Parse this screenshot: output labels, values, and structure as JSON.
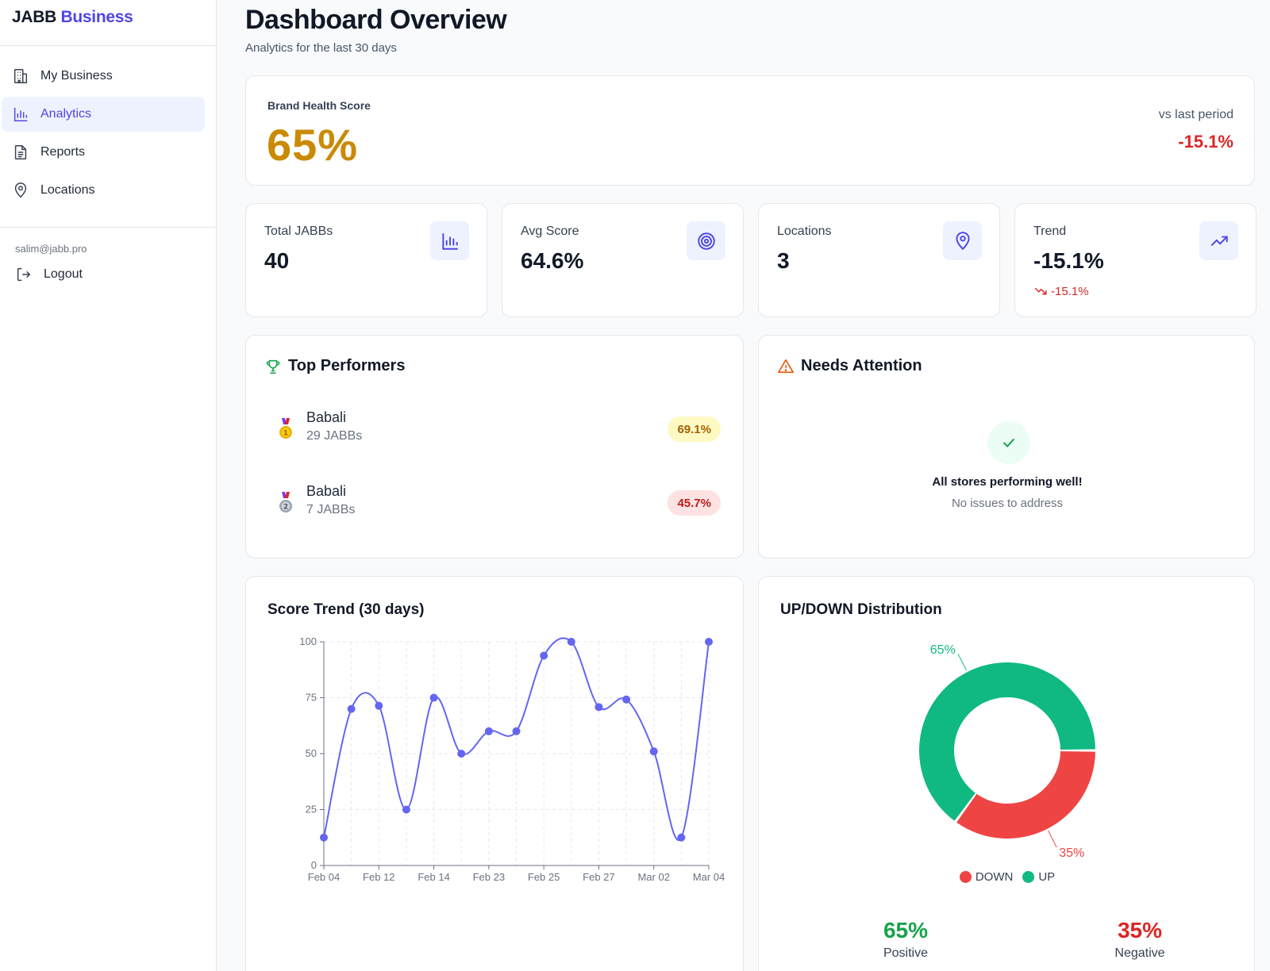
{
  "brand": {
    "part1": "JABB",
    "part2": "Business"
  },
  "nav": [
    {
      "label": "My Business"
    },
    {
      "label": "Analytics"
    },
    {
      "label": "Reports"
    },
    {
      "label": "Locations"
    }
  ],
  "user": {
    "email": "salim@jabb.pro",
    "logout_label": "Logout"
  },
  "page": {
    "title": "Dashboard Overview",
    "subtitle": "Analytics for the last 30 days"
  },
  "health": {
    "label": "Brand Health Score",
    "value": "65%",
    "vs_label": "vs last period",
    "vs_value": "-15.1%"
  },
  "stats": [
    {
      "label": "Total JABBs",
      "value": "40",
      "icon": "bar-chart-icon"
    },
    {
      "label": "Avg Score",
      "value": "64.6%",
      "icon": "target-icon"
    },
    {
      "label": "Locations",
      "value": "3",
      "icon": "map-pin-icon"
    },
    {
      "label": "Trend",
      "value": "-15.1%",
      "delta": "-15.1%",
      "icon": "trending-up-icon"
    }
  ],
  "top_performers": {
    "title": "Top Performers",
    "items": [
      {
        "name": "Babali",
        "count": "29 JABBs",
        "score": "69.1%",
        "medal": "1"
      },
      {
        "name": "Babali",
        "count": "7 JABBs",
        "score": "45.7%",
        "medal": "2"
      }
    ]
  },
  "needs_attention": {
    "title": "Needs Attention",
    "ok_title": "All stores performing well!",
    "ok_sub": "No issues to address"
  },
  "colors": {
    "accent": "#4f46e5",
    "up": "#10b981",
    "down": "#ef4444",
    "line": "#6366f1",
    "warn": "#ca8a04"
  },
  "chart_data": [
    {
      "type": "line",
      "title": "Score Trend (30 days)",
      "x": [
        "Feb 04",
        "Feb 07",
        "Feb 12",
        "Feb 13",
        "Feb 14",
        "Feb 16",
        "Feb 23",
        "Feb 24",
        "Feb 25",
        "Feb 26",
        "Feb 27",
        "Mar 01",
        "Mar 02",
        "Mar 03",
        "Mar 04"
      ],
      "y": [
        12.5,
        70,
        71.4,
        25,
        75,
        50,
        60,
        60,
        93.8,
        100,
        70.8,
        74.2,
        51,
        12.5,
        100
      ],
      "tick_labels": [
        "Feb 04",
        "Feb 12",
        "Feb 14",
        "Feb 23",
        "Feb 25",
        "Feb 27",
        "Mar 02",
        "Mar 04"
      ],
      "tick_indices": [
        0,
        2,
        4,
        6,
        8,
        10,
        12,
        14
      ],
      "yticks": [
        0,
        25,
        50,
        75,
        100
      ],
      "ylim": [
        0,
        100
      ],
      "grid": true
    },
    {
      "type": "pie",
      "title": "UP/DOWN Distribution",
      "labels": [
        "DOWN",
        "UP"
      ],
      "values": [
        35,
        65
      ],
      "label_texts": [
        "35%",
        "65%"
      ],
      "summary": [
        {
          "value": "65%",
          "label": "Positive"
        },
        {
          "value": "35%",
          "label": "Negative"
        }
      ]
    }
  ]
}
